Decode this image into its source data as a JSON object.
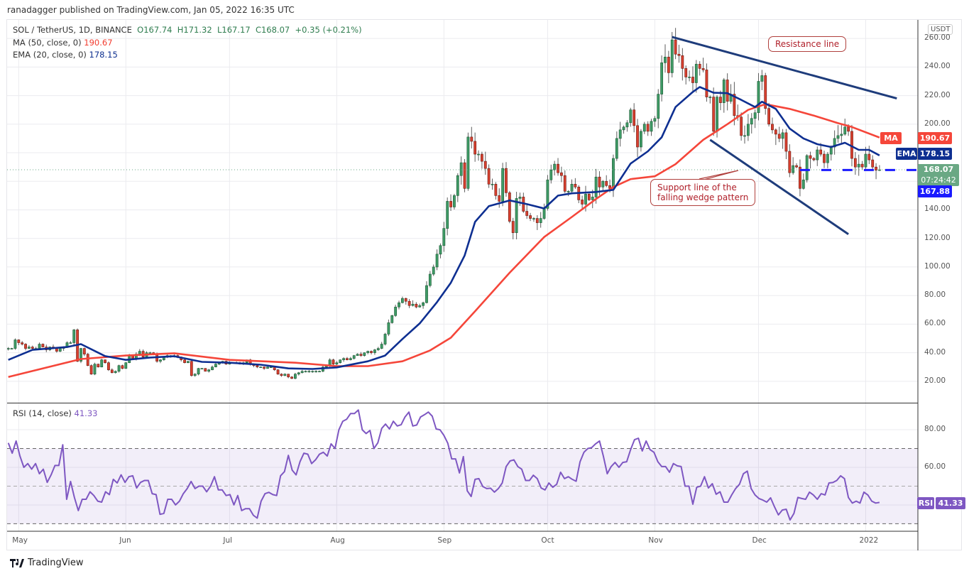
{
  "header": {
    "published": "ranadagger published on TradingView.com, Jan 05, 2022 16:35 UTC"
  },
  "legend": {
    "symbol": "SOL / TetherUS, 1D, BINANCE",
    "open": "O167.74",
    "high": "H171.32",
    "low": "L167.17",
    "close": "C168.07",
    "change": "+0.35 (+0.21%)",
    "ma": {
      "label": "MA (50, close, 0)",
      "value": "190.67"
    },
    "ema": {
      "label": "EMA (20, close, 0)",
      "value": "178.15"
    }
  },
  "rsi_legend": {
    "label": "RSI (14, close)",
    "value": "41.33"
  },
  "price_axis": {
    "currency": "USDT",
    "ticks": [
      "260.00",
      "240.00",
      "220.00",
      "200.00",
      "140.00",
      "120.00",
      "100.00",
      "80.00",
      "60.00",
      "40.00",
      "20.00"
    ],
    "tick_values": [
      260,
      240,
      220,
      200,
      140,
      120,
      100,
      80,
      60,
      40,
      20
    ],
    "grid_values": [
      260,
      240,
      220,
      200,
      180,
      160,
      140,
      120,
      100,
      80,
      60,
      40,
      20
    ]
  },
  "rsi_axis": {
    "ticks": [
      "80.00",
      "60.00"
    ],
    "tick_values": [
      80,
      60
    ],
    "grid_values": [
      80,
      60,
      40
    ]
  },
  "price_tags": {
    "ma_label": "MA",
    "ma_value": "190.67",
    "ema_label": "EMA",
    "ema_value": "178.15",
    "last_price": "168.07",
    "countdown": "07:24:42",
    "level": "167.88",
    "rsi_label": "RSI",
    "rsi_value": "41.33"
  },
  "time_axis": {
    "labels": [
      "May",
      "Jun",
      "Jul",
      "Aug",
      "Sep",
      "Oct",
      "Nov",
      "Dec",
      "2022"
    ],
    "dates": [
      "2021-05-01",
      "2021-06-01",
      "2021-07-01",
      "2021-08-01",
      "2021-09-01",
      "2021-10-01",
      "2021-11-01",
      "2021-12-01",
      "2022-01-01"
    ]
  },
  "annotations": {
    "resistance": "Resistance line",
    "support_line1": "Support line of the",
    "support_line2": "falling wedge pattern"
  },
  "footer": {
    "brand": "TradingView"
  },
  "colors": {
    "up": "#3f9b66",
    "down": "#d8402f",
    "wick": "#5d5d5d",
    "ma": "#f5463a",
    "ema": "#0e2f91",
    "rsi": "#7e57c2",
    "trendline": "#1e3c7b",
    "level": "#1a1aff",
    "last_price": "#6aa884",
    "grid": "#ebebef"
  },
  "chart_data": {
    "type": "candlestick",
    "interval": "1D",
    "start_date": "2021-04-28",
    "price_range": [
      5,
      273
    ],
    "closes": [
      43,
      43,
      49,
      47,
      46,
      43,
      44,
      43,
      43,
      46,
      44,
      42,
      44,
      43,
      41,
      43,
      44,
      47,
      47,
      56,
      34,
      43,
      39,
      31,
      25,
      32,
      30,
      35,
      33,
      28,
      26,
      27,
      31,
      29,
      33,
      38,
      36,
      39,
      41,
      37,
      40,
      40,
      39,
      34,
      35,
      37,
      38,
      38,
      38,
      37,
      35,
      33,
      34,
      24,
      25,
      29,
      29,
      27,
      28,
      30,
      32,
      33,
      34,
      32,
      33,
      33,
      33,
      32,
      33,
      35,
      32,
      31,
      30,
      30,
      29,
      30,
      30,
      28,
      25,
      24,
      25,
      23,
      22,
      25,
      26,
      27,
      27,
      27,
      27,
      27,
      27,
      30,
      31,
      35,
      32,
      33,
      35,
      36,
      35,
      36,
      38,
      39,
      38,
      40,
      41,
      40,
      42,
      43,
      46,
      53,
      61,
      66,
      72,
      75,
      78,
      76,
      73,
      74,
      72,
      73,
      75,
      87,
      95,
      100,
      109,
      115,
      127,
      146,
      142,
      150,
      164,
      173,
      155,
      191,
      188,
      179,
      179,
      174,
      169,
      158,
      158,
      150,
      146,
      169,
      152,
      132,
      124,
      148,
      149,
      139,
      136,
      134,
      134,
      131,
      134,
      141,
      161,
      168,
      172,
      166,
      164,
      153,
      153,
      158,
      156,
      147,
      144,
      151,
      147,
      149,
      163,
      156,
      160,
      157,
      155,
      176,
      190,
      196,
      198,
      201,
      210,
      199,
      184,
      195,
      200,
      195,
      202,
      204,
      221,
      243,
      247,
      236,
      259,
      249,
      248,
      239,
      233,
      233,
      229,
      242,
      239,
      238,
      219,
      219,
      195,
      219,
      215,
      231,
      216,
      221,
      206,
      205,
      192,
      192,
      200,
      204,
      208,
      230,
      234,
      211,
      200,
      196,
      193,
      190,
      194,
      181,
      166,
      171,
      170,
      155,
      161,
      178,
      176,
      175,
      182,
      179,
      173,
      179,
      184,
      190,
      192,
      193,
      198,
      195,
      176,
      170,
      172,
      170,
      179,
      175,
      170,
      167.74,
      168.07
    ],
    "last_candle": {
      "open": 167.74,
      "high": 171.32,
      "low": 167.17,
      "close": 168.07
    },
    "ma50": [
      [
        "2021-04-28",
        23
      ],
      [
        "2021-05-19",
        35.6
      ],
      [
        "2021-06-01",
        38
      ],
      [
        "2021-06-15",
        39.6
      ],
      [
        "2021-07-01",
        35
      ],
      [
        "2021-07-20",
        33
      ],
      [
        "2021-08-01",
        30.6
      ],
      [
        "2021-08-10",
        30.6
      ],
      [
        "2021-08-20",
        34
      ],
      [
        "2021-08-28",
        41.6
      ],
      [
        "2021-09-03",
        50.5
      ],
      [
        "2021-09-10",
        69
      ],
      [
        "2021-09-20",
        96
      ],
      [
        "2021-09-30",
        121
      ],
      [
        "2021-10-08",
        135
      ],
      [
        "2021-10-15",
        147.6
      ],
      [
        "2021-10-20",
        156
      ],
      [
        "2021-10-25",
        161.5
      ],
      [
        "2021-11-01",
        163.5
      ],
      [
        "2021-11-07",
        172
      ],
      [
        "2021-11-15",
        189
      ],
      [
        "2021-11-22",
        200
      ],
      [
        "2021-11-28",
        210
      ],
      [
        "2021-12-03",
        214
      ],
      [
        "2021-12-10",
        210.7
      ],
      [
        "2021-12-17",
        206
      ],
      [
        "2021-12-24",
        200.7
      ],
      [
        "2021-12-28",
        198
      ],
      [
        "2022-01-05",
        190.67
      ]
    ],
    "ema20": [
      [
        "2021-04-28",
        35
      ],
      [
        "2021-05-05",
        42
      ],
      [
        "2021-05-15",
        44
      ],
      [
        "2021-05-19",
        46
      ],
      [
        "2021-05-26",
        37.6
      ],
      [
        "2021-06-01",
        35
      ],
      [
        "2021-06-08",
        36.6
      ],
      [
        "2021-06-15",
        37.5
      ],
      [
        "2021-06-23",
        33.6
      ],
      [
        "2021-07-01",
        33
      ],
      [
        "2021-07-10",
        31.6
      ],
      [
        "2021-07-18",
        29
      ],
      [
        "2021-07-25",
        28.6
      ],
      [
        "2021-08-01",
        29.7
      ],
      [
        "2021-08-10",
        34
      ],
      [
        "2021-08-15",
        38
      ],
      [
        "2021-08-20",
        49.6
      ],
      [
        "2021-08-25",
        60.5
      ],
      [
        "2021-08-30",
        75.4
      ],
      [
        "2021-09-03",
        89
      ],
      [
        "2021-09-07",
        108
      ],
      [
        "2021-09-10",
        131.6
      ],
      [
        "2021-09-14",
        142.6
      ],
      [
        "2021-09-20",
        146.6
      ],
      [
        "2021-09-25",
        144
      ],
      [
        "2021-09-30",
        141
      ],
      [
        "2021-10-04",
        150
      ],
      [
        "2021-10-08",
        151.6
      ],
      [
        "2021-10-15",
        152.5
      ],
      [
        "2021-10-20",
        154
      ],
      [
        "2021-10-25",
        172.4
      ],
      [
        "2021-10-30",
        181
      ],
      [
        "2021-11-03",
        190.8
      ],
      [
        "2021-11-07",
        212
      ],
      [
        "2021-11-12",
        222.6
      ],
      [
        "2021-11-14",
        226
      ],
      [
        "2021-11-18",
        222
      ],
      [
        "2021-11-22",
        221.7
      ],
      [
        "2021-11-26",
        217
      ],
      [
        "2021-11-30",
        212
      ],
      [
        "2021-12-02",
        215.7
      ],
      [
        "2021-12-06",
        210.7
      ],
      [
        "2021-12-10",
        197
      ],
      [
        "2021-12-14",
        190
      ],
      [
        "2021-12-18",
        186
      ],
      [
        "2021-12-22",
        184
      ],
      [
        "2021-12-26",
        187
      ],
      [
        "2021-12-30",
        182
      ],
      [
        "2022-01-02",
        182
      ],
      [
        "2022-01-05",
        178.15
      ]
    ],
    "rsi": {
      "period": 14,
      "range": [
        26,
        94
      ],
      "levels": [
        70,
        50,
        30
      ],
      "values": [
        73,
        67.5,
        74,
        66,
        60,
        62,
        59,
        62,
        56.6,
        59,
        52,
        56,
        61,
        61,
        72,
        43,
        52.5,
        44,
        37,
        43,
        43,
        47,
        45,
        42,
        41.5,
        47,
        45.5,
        53.6,
        51.7,
        56,
        52,
        55,
        55.5,
        49,
        52,
        53,
        53,
        46,
        45.5,
        35,
        35.5,
        43,
        43,
        40,
        42,
        46,
        48.7,
        52.5,
        48.7,
        50,
        50,
        47,
        50,
        55,
        48,
        48,
        45,
        45.5,
        40,
        45,
        37,
        38,
        38,
        34.5,
        33,
        42,
        46,
        46.7,
        45.5,
        45,
        55.5,
        57.7,
        66.4,
        58.5,
        56,
        63,
        67.5,
        67,
        62,
        64,
        67,
        68,
        66,
        72.5,
        70,
        80,
        84.5,
        85.6,
        88.6,
        88.6,
        90.5,
        80,
        78,
        79.6,
        70,
        73,
        80.7,
        83,
        80.4,
        84.5,
        82,
        82.7,
        86.8,
        89.4,
        82,
        82.5,
        86.8,
        88,
        89.4,
        87.2,
        80.4,
        80,
        77,
        72.8,
        64.5,
        64.5,
        57,
        65.7,
        47.5,
        44.5,
        53.6,
        54,
        49.8,
        48.7,
        48.9,
        46.8,
        48.7,
        51.7,
        60.4,
        63.4,
        64,
        60.4,
        59,
        53,
        53,
        55.8,
        54,
        49,
        48,
        51.7,
        49.4,
        51,
        57.4,
        54,
        55,
        53.6,
        52.6,
        63,
        68,
        70,
        70.5,
        72.5,
        74,
        66,
        56.6,
        60.4,
        62.6,
        60,
        62.6,
        63,
        69.4,
        74.7,
        75.5,
        68.7,
        74,
        69.4,
        68,
        63,
        60.4,
        60.4,
        57.4,
        62,
        60.8,
        60.4,
        50,
        50,
        40.4,
        49.4,
        50,
        55,
        49,
        51.3,
        45.7,
        47,
        41.5,
        41.5,
        45.3,
        48.7,
        51,
        56.6,
        58,
        48.7,
        45.3,
        43.4,
        42.6,
        41.5,
        43.8,
        39,
        34.7,
        37.3,
        37.7,
        32,
        35.5,
        44,
        43.4,
        43,
        46.8,
        45.3,
        43,
        46,
        45.3,
        51.7,
        51.9,
        53,
        55.5,
        54,
        44,
        41,
        42,
        41,
        46.8,
        45.3,
        42,
        41,
        41.33
      ]
    },
    "trendlines": {
      "resistance": [
        [
          "2021-11-06",
          261
        ],
        [
          "2022-01-10",
          218
        ]
      ],
      "support": [
        [
          "2021-11-17",
          189
        ],
        [
          "2021-12-27",
          123
        ]
      ]
    },
    "horizontal_level": {
      "value": 167.88,
      "from": "2021-12-13"
    },
    "last_price_line": 168.07
  }
}
